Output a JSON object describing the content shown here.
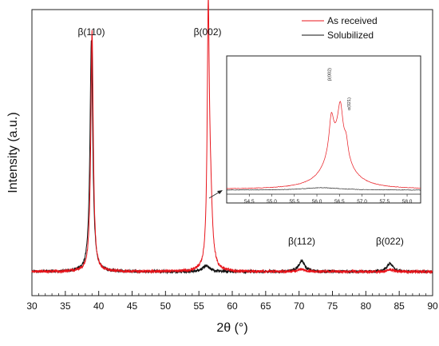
{
  "chart_data": [
    {
      "type": "line",
      "xlabel": "2θ (°)",
      "ylabel": "Intensity (a.u.)",
      "xlim": [
        30,
        90
      ],
      "xticks": [
        30,
        35,
        40,
        45,
        50,
        55,
        60,
        65,
        70,
        75,
        80,
        85,
        90
      ],
      "ylim": [
        0,
        100
      ],
      "grid": false,
      "legend_position": "top-right",
      "series": [
        {
          "name": "As received",
          "color": "#e8141b",
          "peaks": [
            {
              "center": 39.0,
              "height": 100,
              "width": 0.22
            },
            {
              "center": 56.4,
              "height": 96,
              "width": 0.18
            },
            {
              "center": 56.7,
              "height": 30,
              "width": 0.35
            },
            {
              "center": 70.4,
              "height": 1.0,
              "width": 0.5
            },
            {
              "center": 83.6,
              "height": 0.8,
              "width": 0.5
            }
          ],
          "baseline": 0
        },
        {
          "name": "Solubilized",
          "color": "#111111",
          "peaks": [
            {
              "center": 38.9,
              "height": 96,
              "width": 0.25
            },
            {
              "center": 56.1,
              "height": 2.5,
              "width": 0.6
            },
            {
              "center": 70.4,
              "height": 4.5,
              "width": 0.55
            },
            {
              "center": 83.6,
              "height": 3.5,
              "width": 0.5
            }
          ],
          "baseline": 0
        }
      ],
      "annotations": [
        {
          "text": "β(110)",
          "x": 38.9
        },
        {
          "text": "β(002)",
          "x": 56.3
        },
        {
          "text": "β(112)",
          "x": 70.4
        },
        {
          "text": "β(022)",
          "x": 83.6
        }
      ]
    },
    {
      "type": "line",
      "xlim": [
        54.0,
        58.3
      ],
      "xticks": [
        "54.5",
        "55.0",
        "55.5",
        "56.0",
        "56.5",
        "57.0",
        "57.5",
        "58.0"
      ],
      "series": [
        {
          "name": "As received",
          "color": "#e8141b"
        },
        {
          "name": "Solubilized",
          "color": "#111111"
        }
      ],
      "annotations": [
        {
          "text": "β(002)",
          "x": 56.38
        },
        {
          "text": "α(021)",
          "x": 56.6
        }
      ]
    }
  ]
}
